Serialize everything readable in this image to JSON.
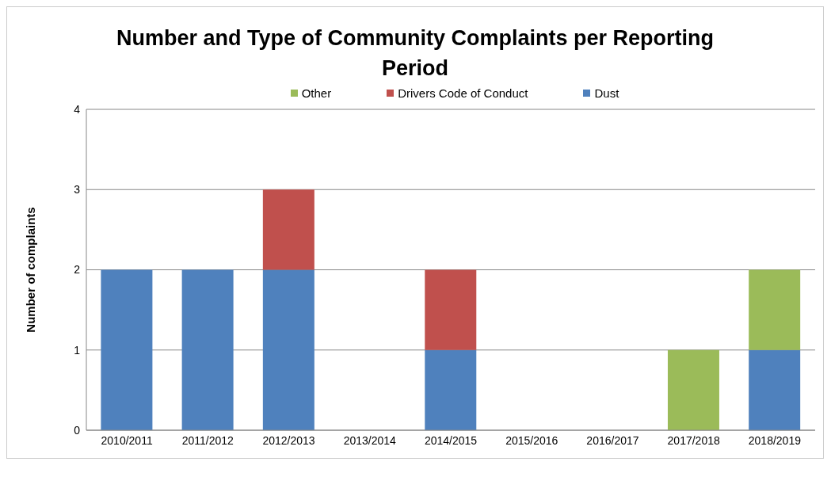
{
  "chart_data": {
    "type": "bar",
    "title": "Number and Type of Community Complaints per Reporting Period",
    "ylabel": "Number of complaints",
    "categories": [
      "2010/2011",
      "2011/2012",
      "2012/2013",
      "2013/2014",
      "2014/2015",
      "2015/2016",
      "2016/2017",
      "2017/2018",
      "2018/2019"
    ],
    "stacked": true,
    "series": [
      {
        "name": "Dust",
        "color": "#4f81bd",
        "values": [
          2,
          2,
          2,
          0,
          1,
          0,
          0,
          0,
          1
        ]
      },
      {
        "name": "Drivers Code of Conduct",
        "color": "#c0504d",
        "values": [
          0,
          0,
          1,
          0,
          1,
          0,
          0,
          0,
          0
        ]
      },
      {
        "name": "Other",
        "color": "#9bbb59",
        "values": [
          0,
          0,
          0,
          0,
          0,
          0,
          0,
          1,
          1
        ]
      }
    ],
    "ylim": [
      0,
      4
    ],
    "yticks": [
      0,
      1,
      2,
      3,
      4
    ],
    "grid": "y",
    "legend": "top"
  }
}
